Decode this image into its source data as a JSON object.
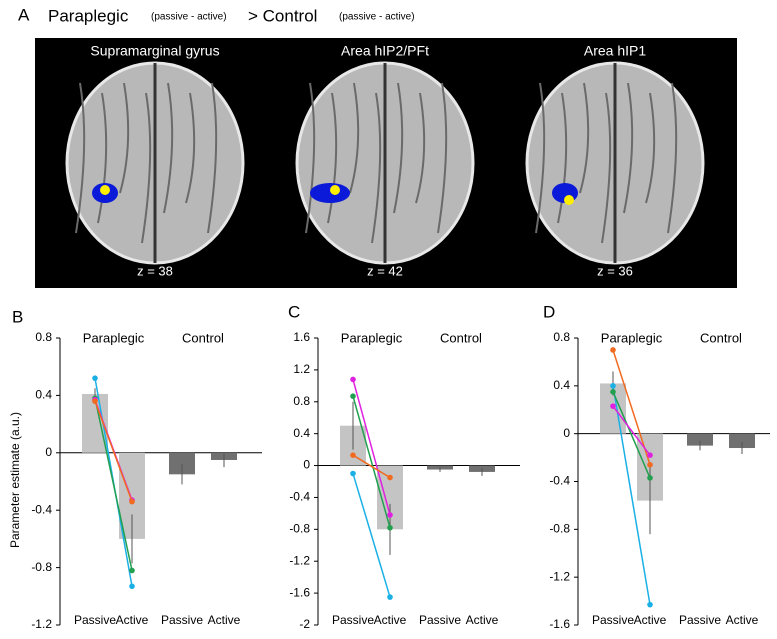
{
  "header": {
    "panel": "A",
    "group1": "Paraplegic",
    "contrast1": "(passive - active)",
    "group2": "> Control",
    "contrast2": "(passive - active)"
  },
  "brains": [
    {
      "title": "Supramarginal gyrus",
      "slice": "z = 38"
    },
    {
      "title": "Area hIP2/PFt",
      "slice": "z = 42"
    },
    {
      "title": "Area hIP1",
      "slice": "z = 36"
    }
  ],
  "chart_data": [
    {
      "type": "bar",
      "panel": "B",
      "ylabel": "Parameter estimate (a.u.)",
      "groups": [
        "Paraplegic",
        "Control"
      ],
      "categories": [
        "Passive",
        "Active",
        "Passive",
        "Active"
      ],
      "values": [
        0.41,
        -0.6,
        -0.15,
        -0.05
      ],
      "errors": [
        0.04,
        0.17,
        0.07,
        0.05
      ],
      "colors": [
        "#c4c4c4",
        "#c4c4c4",
        "#707070",
        "#707070"
      ],
      "series": [
        {
          "color": "#1ab0e6",
          "values": [
            0.52,
            -0.93,
            null,
            null
          ]
        },
        {
          "color": "#22a050",
          "values": [
            0.38,
            -0.82,
            null,
            null
          ]
        },
        {
          "color": "#e020e0",
          "values": [
            0.37,
            -0.33,
            null,
            null
          ]
        },
        {
          "color": "#f06a20",
          "values": [
            0.36,
            -0.34,
            null,
            null
          ]
        }
      ],
      "ylim": [
        -1.2,
        0.8
      ],
      "yticks": [
        -1.2,
        -0.8,
        -0.4,
        0,
        0.4,
        0.8
      ]
    },
    {
      "type": "bar",
      "panel": "C",
      "groups": [
        "Paraplegic",
        "Control"
      ],
      "categories": [
        "Passive",
        "Active",
        "Passive",
        "Active"
      ],
      "values": [
        0.5,
        -0.8,
        -0.05,
        -0.08
      ],
      "errors": [
        0.3,
        0.32,
        0.03,
        0.05
      ],
      "colors": [
        "#c4c4c4",
        "#c4c4c4",
        "#707070",
        "#707070"
      ],
      "series": [
        {
          "color": "#e020e0",
          "values": [
            1.08,
            -0.62,
            null,
            null
          ]
        },
        {
          "color": "#22a050",
          "values": [
            0.87,
            -0.78,
            null,
            null
          ]
        },
        {
          "color": "#f06a20",
          "values": [
            0.13,
            -0.15,
            null,
            null
          ]
        },
        {
          "color": "#1ab0e6",
          "values": [
            -0.1,
            -1.65,
            null,
            null
          ]
        }
      ],
      "ylim": [
        -2,
        1.6
      ],
      "yticks": [
        -2,
        -1.6,
        -1.2,
        -0.8,
        -0.4,
        0,
        0.4,
        0.8,
        1.2,
        1.6
      ]
    },
    {
      "type": "bar",
      "panel": "D",
      "groups": [
        "Paraplegic",
        "Control"
      ],
      "categories": [
        "Passive",
        "Active",
        "Passive",
        "Active"
      ],
      "values": [
        0.42,
        -0.56,
        -0.1,
        -0.12
      ],
      "errors": [
        0.1,
        0.28,
        0.04,
        0.05
      ],
      "colors": [
        "#c4c4c4",
        "#c4c4c4",
        "#707070",
        "#707070"
      ],
      "series": [
        {
          "color": "#f06a20",
          "values": [
            0.7,
            -0.26,
            null,
            null
          ]
        },
        {
          "color": "#1ab0e6",
          "values": [
            0.4,
            -1.43,
            null,
            null
          ]
        },
        {
          "color": "#22a050",
          "values": [
            0.35,
            -0.37,
            null,
            null
          ]
        },
        {
          "color": "#e020e0",
          "values": [
            0.23,
            -0.18,
            null,
            null
          ]
        }
      ],
      "ylim": [
        -1.6,
        0.8
      ],
      "yticks": [
        -1.6,
        -1.2,
        -0.8,
        -0.4,
        0,
        0.4,
        0.8
      ]
    }
  ]
}
